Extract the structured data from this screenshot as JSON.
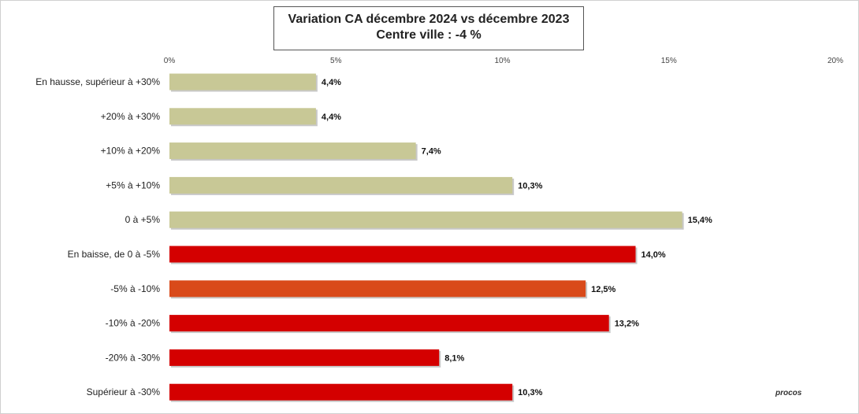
{
  "title": {
    "line1": "Variation CA  décembre 2024 vs décembre 2023",
    "line2": "Centre ville   : -4 %"
  },
  "logo_text": "procos",
  "colors": {
    "positive": "#c8c896",
    "negative": "#d40000",
    "negative_alt": "#d94a1a"
  },
  "chart_data": {
    "type": "bar",
    "orientation": "horizontal",
    "xlim": [
      0,
      20
    ],
    "xticks": [
      "0%",
      "5%",
      "10%",
      "15%",
      "20%"
    ],
    "categories": [
      "En hausse, supérieur à +30%",
      "+20% à +30%",
      "+10% à +20%",
      "+5% à +10%",
      "0 à +5%",
      "En baisse, de 0 à -5%",
      "-5% à -10%",
      "-10% à -20%",
      "-20% à -30%",
      "Supérieur à -30%"
    ],
    "values": [
      4.4,
      4.4,
      7.4,
      10.3,
      15.4,
      14.0,
      12.5,
      13.2,
      8.1,
      10.3
    ],
    "value_labels": [
      "4,4%",
      "4,4%",
      "7,4%",
      "10,3%",
      "15,4%",
      "14,0%",
      "12,5%",
      "13,2%",
      "8,1%",
      "10,3%"
    ],
    "bar_colors": [
      "positive",
      "positive",
      "positive",
      "positive",
      "positive",
      "negative",
      "negative_alt",
      "negative",
      "negative",
      "negative"
    ],
    "grid": false,
    "legend": "none"
  }
}
